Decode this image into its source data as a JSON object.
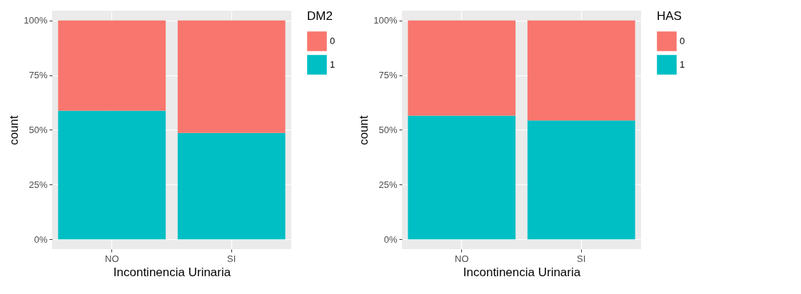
{
  "chart_data": [
    {
      "type": "bar",
      "stacked": true,
      "xlabel": "Incontinencia Urinaria",
      "ylabel": "count",
      "legend_title": "DM2",
      "legend": "right",
      "grid": true,
      "categories": [
        "NO",
        "SI"
      ],
      "series": [
        {
          "name": "1",
          "color": "#00bfc4",
          "values": [
            0.588,
            0.486
          ]
        },
        {
          "name": "0",
          "color": "#f8766d",
          "values": [
            0.412,
            0.514
          ]
        }
      ],
      "ylim": [
        -0.045,
        1.045
      ],
      "yticks": [
        {
          "value": 0,
          "label": "0%"
        },
        {
          "value": 0.25,
          "label": "25%"
        },
        {
          "value": 0.5,
          "label": "50%"
        },
        {
          "value": 0.75,
          "label": "75%"
        },
        {
          "value": 1,
          "label": "100%"
        }
      ]
    },
    {
      "type": "bar",
      "stacked": true,
      "xlabel": "Incontinencia Urinaria",
      "ylabel": "count",
      "legend_title": "HAS",
      "legend": "right",
      "grid": true,
      "categories": [
        "NO",
        "SI"
      ],
      "series": [
        {
          "name": "1",
          "color": "#00bfc4",
          "values": [
            0.565,
            0.543
          ]
        },
        {
          "name": "0",
          "color": "#f8766d",
          "values": [
            0.435,
            0.457
          ]
        }
      ],
      "ylim": [
        -0.045,
        1.045
      ],
      "yticks": [
        {
          "value": 0,
          "label": "0%"
        },
        {
          "value": 0.25,
          "label": "25%"
        },
        {
          "value": 0.5,
          "label": "50%"
        },
        {
          "value": 0.75,
          "label": "75%"
        },
        {
          "value": 1,
          "label": "100%"
        }
      ]
    }
  ]
}
